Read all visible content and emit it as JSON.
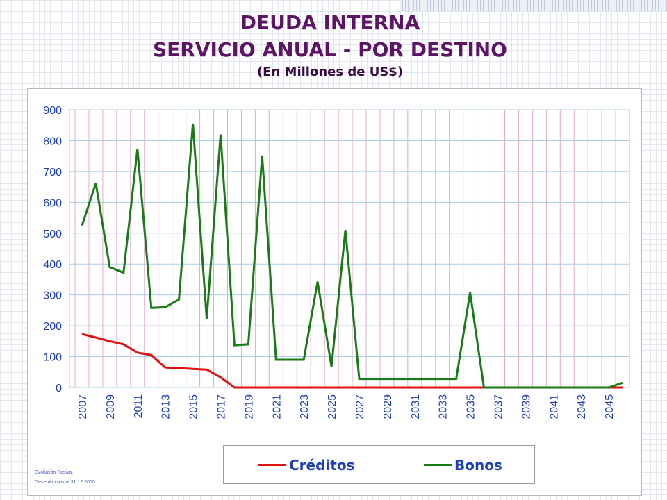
{
  "titles": {
    "line1": "DEUDA INTERNA",
    "line2": "SERVICIO ANUAL - POR DESTINO",
    "line3": "(En Millones de US$)"
  },
  "legend": {
    "item1": "Créditos",
    "item2": "Bonos"
  },
  "footnote": {
    "line1": "Evolución Pasiva.",
    "line2": "Desembolsos al 31.12.2006"
  },
  "colors": {
    "creditos": "#e01010",
    "bonos": "#1a7a16",
    "title": "#5e1466",
    "axis_text": "#1f3fb5",
    "h_grid": "#a8cbe8",
    "v_grid": "#e8a8c8"
  },
  "chart_data": {
    "type": "line",
    "title": "DEUDA INTERNA SERVICIO ANUAL - POR DESTINO",
    "subtitle": "(En Millones de US$)",
    "xlabel": "",
    "ylabel": "",
    "ylim": [
      0,
      900
    ],
    "yticks": [
      0,
      100,
      200,
      300,
      400,
      500,
      600,
      700,
      800,
      900
    ],
    "x": [
      2007,
      2008,
      2009,
      2010,
      2011,
      2012,
      2013,
      2014,
      2015,
      2016,
      2017,
      2018,
      2019,
      2020,
      2021,
      2022,
      2023,
      2024,
      2025,
      2026,
      2027,
      2028,
      2029,
      2030,
      2031,
      2032,
      2033,
      2034,
      2035,
      2036,
      2037,
      2038,
      2039,
      2040,
      2041,
      2042,
      2043,
      2044,
      2045,
      2046
    ],
    "xtick_labels": [
      "2007",
      "2009",
      "2011",
      "2013",
      "2015",
      "2017",
      "2019",
      "2021",
      "2023",
      "2025",
      "2027",
      "2029",
      "2031",
      "2033",
      "2035",
      "2037",
      "2039",
      "2041",
      "2043",
      "2045"
    ],
    "grid": true,
    "legend_position": "bottom",
    "series": [
      {
        "name": "Créditos",
        "color": "#e01010",
        "values": [
          173,
          162,
          150,
          140,
          113,
          105,
          65,
          63,
          60,
          58,
          33,
          0,
          0,
          0,
          0,
          0,
          0,
          0,
          0,
          0,
          0,
          0,
          0,
          0,
          0,
          0,
          0,
          0,
          0,
          0,
          0,
          0,
          0,
          0,
          0,
          0,
          0,
          0,
          0,
          0
        ]
      },
      {
        "name": "Bonos",
        "color": "#1a7a16",
        "values": [
          525,
          662,
          390,
          372,
          773,
          258,
          260,
          285,
          855,
          223,
          820,
          137,
          140,
          752,
          90,
          90,
          90,
          343,
          68,
          510,
          28,
          28,
          28,
          28,
          28,
          28,
          28,
          28,
          308,
          0,
          0,
          0,
          0,
          0,
          0,
          0,
          0,
          0,
          0,
          15
        ]
      }
    ]
  }
}
